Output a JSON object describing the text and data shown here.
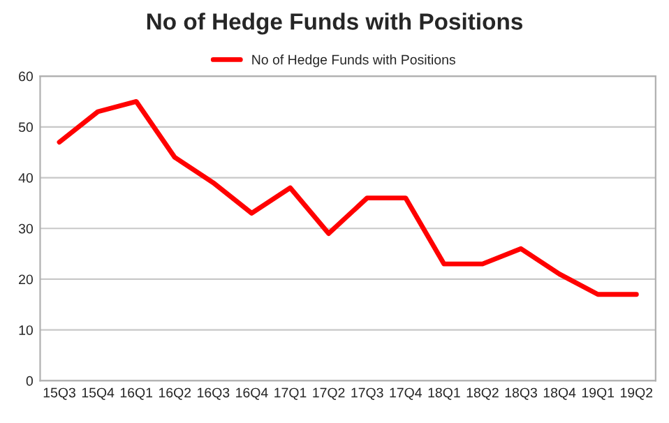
{
  "chart_data": {
    "type": "line",
    "title": "No of Hedge Funds with Positions",
    "categories": [
      "15Q3",
      "15Q4",
      "16Q1",
      "16Q2",
      "16Q3",
      "16Q4",
      "17Q1",
      "17Q2",
      "17Q3",
      "17Q4",
      "18Q1",
      "18Q2",
      "18Q3",
      "18Q4",
      "19Q1",
      "19Q2"
    ],
    "series": [
      {
        "name": "No of Hedge Funds with Positions",
        "color": "#ff0000",
        "values": [
          47,
          53,
          55,
          44,
          39,
          33,
          38,
          29,
          36,
          36,
          23,
          23,
          26,
          21,
          17,
          17
        ]
      }
    ],
    "ylim": [
      0,
      60
    ],
    "yticks": [
      0,
      10,
      20,
      30,
      40,
      50,
      60
    ],
    "grid": "y",
    "legend": "top"
  }
}
